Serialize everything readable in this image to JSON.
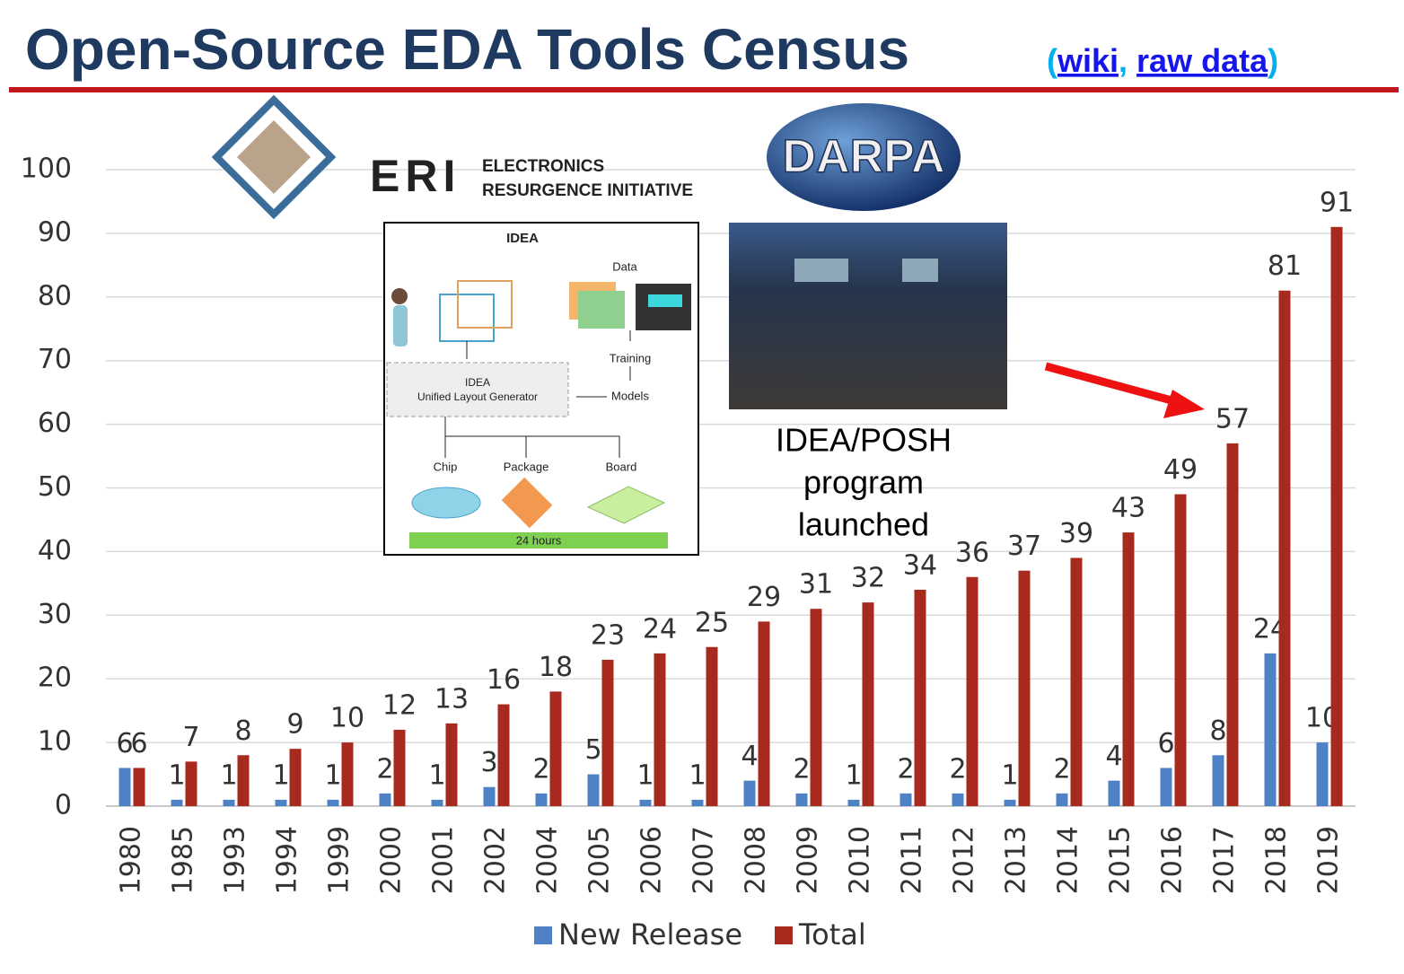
{
  "header": {
    "title": "Open-Source EDA Tools Census",
    "link_open": "(",
    "links": [
      "wiki",
      "raw data"
    ],
    "link_separator": ",",
    "link_close": ")"
  },
  "logos": {
    "eri_letters": "ERI",
    "eri_name": [
      "ELECTRONICS",
      "RESURGENCE INITIATIVE"
    ],
    "darpa": "DARPA"
  },
  "idea_diagram": {
    "title": "IDEA",
    "data": "Data",
    "training": "Training",
    "models": "Models",
    "generator": [
      "IDEA",
      "Unified Layout Generator"
    ],
    "outputs": [
      "Chip",
      "Package",
      "Board"
    ],
    "duration": "24 hours"
  },
  "chart_data": {
    "type": "bar",
    "categories": [
      "1980",
      "1985",
      "1993",
      "1994",
      "1999",
      "2000",
      "2001",
      "2002",
      "2004",
      "2005",
      "2006",
      "2007",
      "2008",
      "2009",
      "2010",
      "2011",
      "2012",
      "2013",
      "2014",
      "2015",
      "2016",
      "2017",
      "2018",
      "2019"
    ],
    "series": [
      {
        "name": "New Release",
        "color": "#4f81c7",
        "values": [
          6,
          1,
          1,
          1,
          1,
          2,
          1,
          3,
          2,
          5,
          1,
          1,
          4,
          2,
          1,
          2,
          2,
          1,
          2,
          4,
          6,
          8,
          24,
          10
        ]
      },
      {
        "name": "Total",
        "color": "#a8291d",
        "values": [
          6,
          7,
          8,
          9,
          10,
          12,
          13,
          16,
          18,
          23,
          24,
          25,
          29,
          31,
          32,
          34,
          36,
          37,
          39,
          43,
          49,
          57,
          81,
          91
        ]
      }
    ],
    "ylim": [
      0,
      100
    ],
    "yticks": [
      0,
      10,
      20,
      30,
      40,
      50,
      60,
      70,
      80,
      90,
      100
    ],
    "grid": true,
    "legend": "bottom",
    "annotation": [
      "IDEA/POSH",
      "program",
      "launched"
    ]
  }
}
